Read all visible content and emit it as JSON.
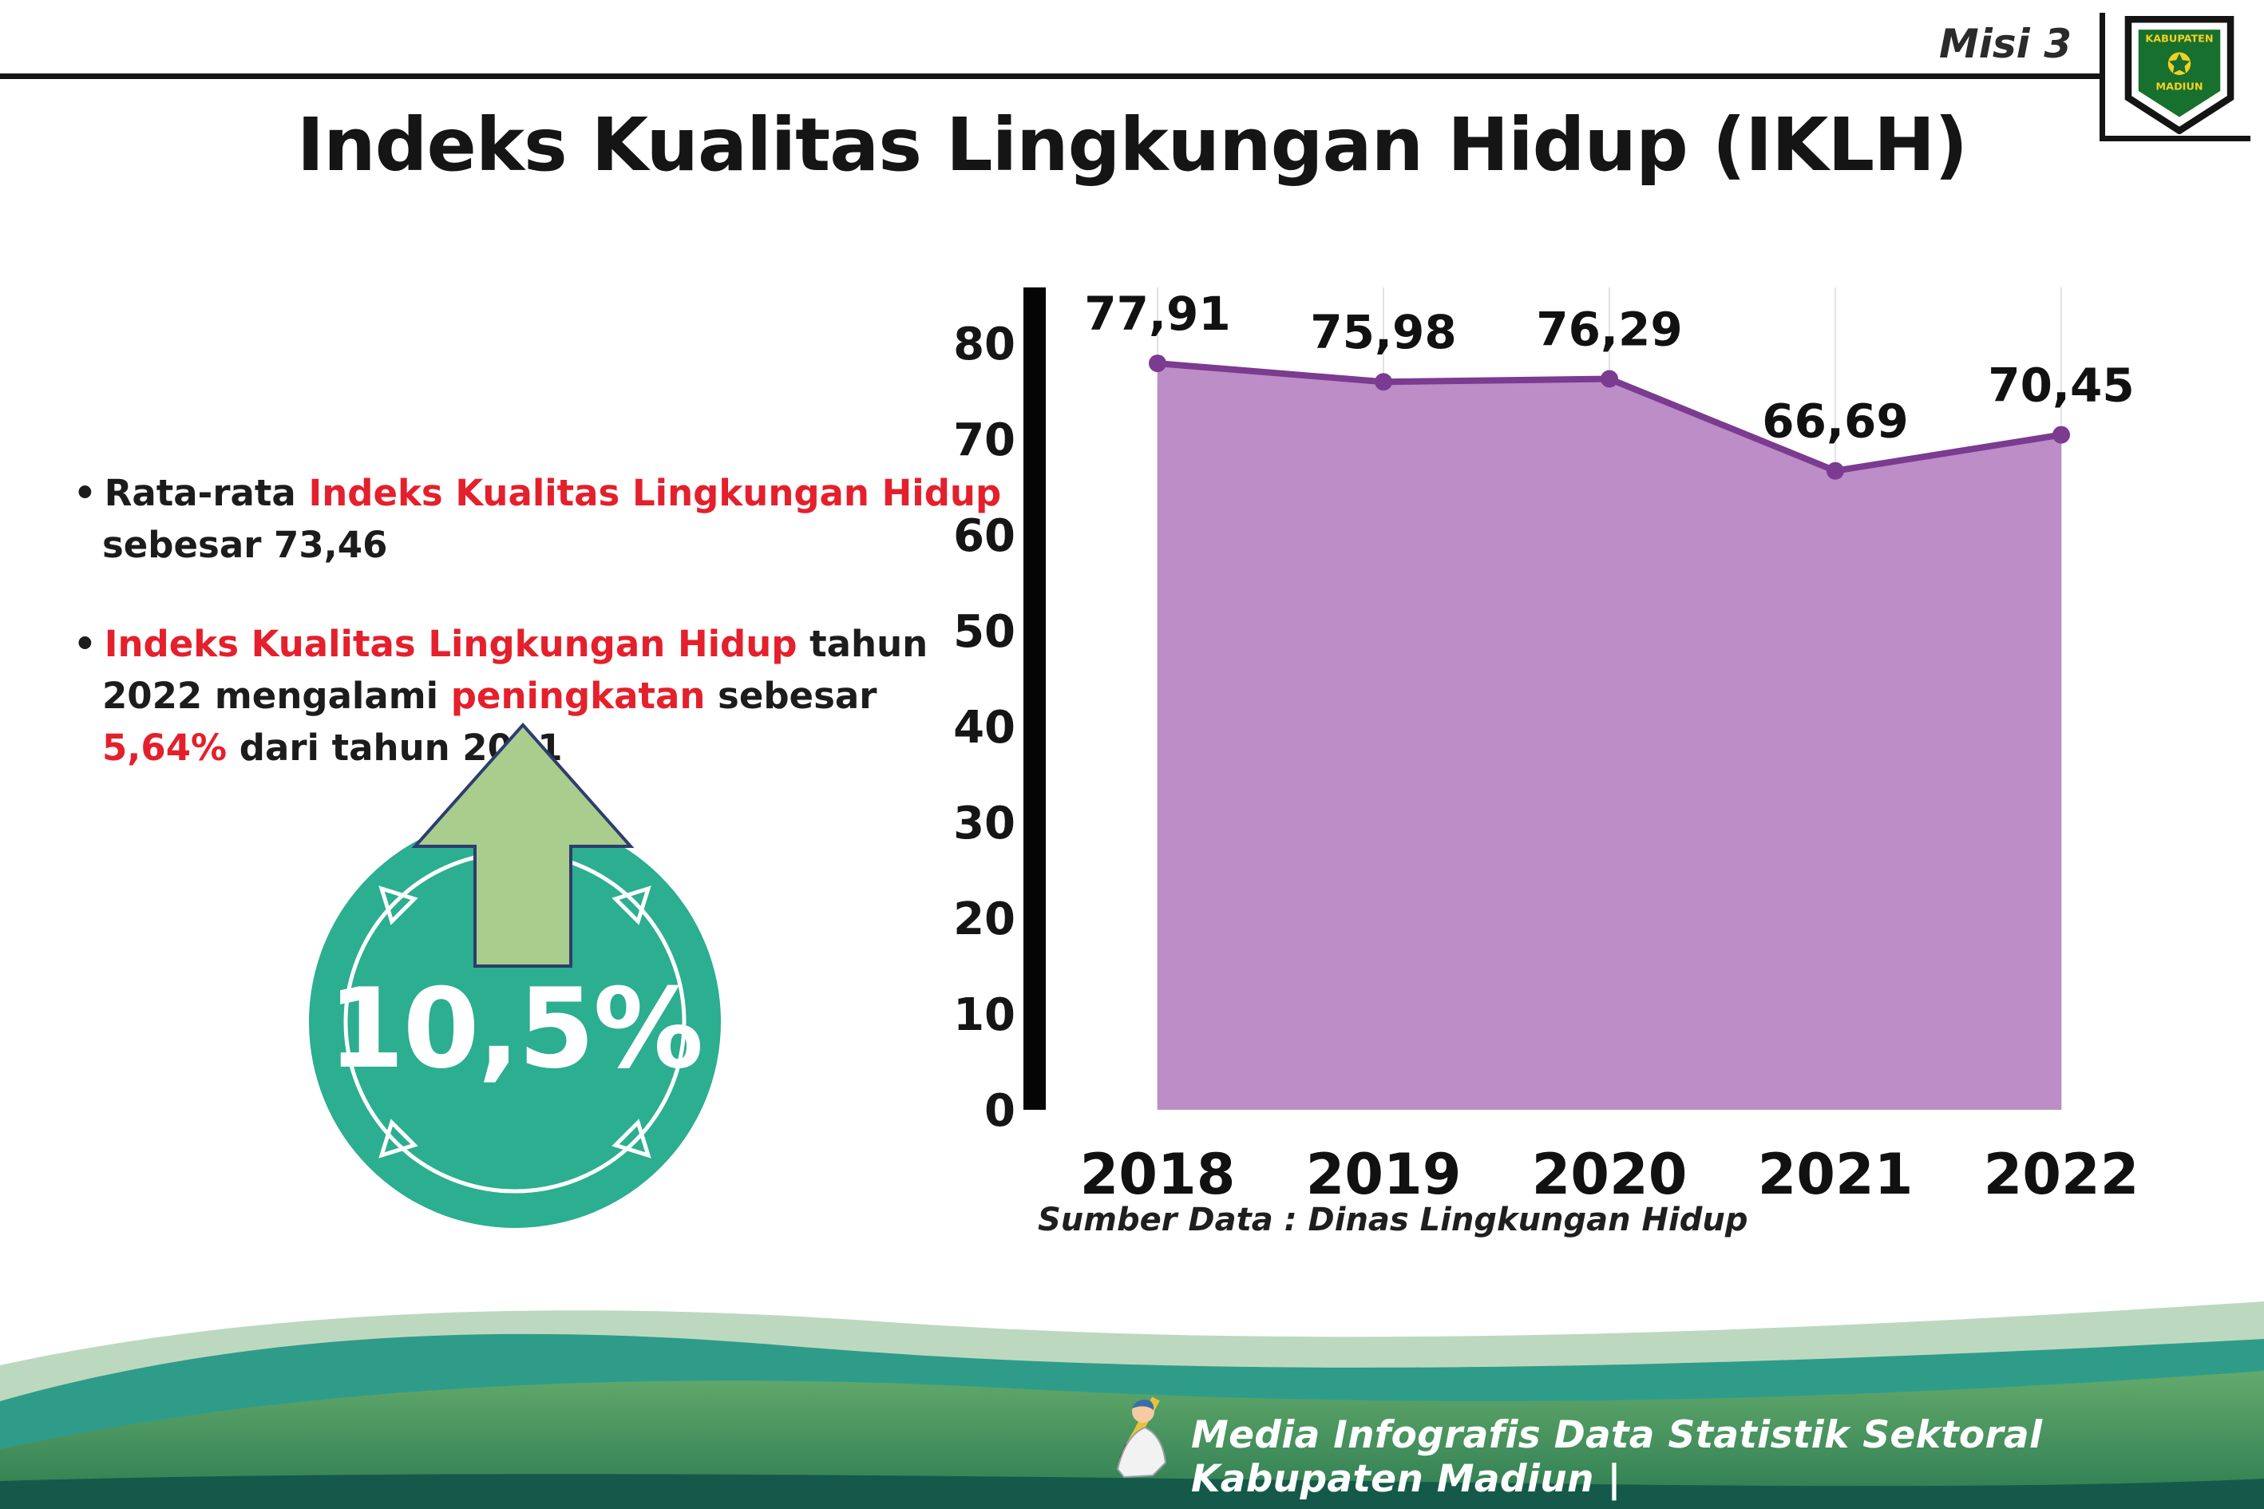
{
  "theme": {
    "red": "#e4202c",
    "ink": "#161616",
    "footer_text": "#ffffff"
  },
  "header": {
    "misi_label": "Misi 3",
    "title": "Indeks Kualitas Lingkungan Hidup (IKLH)",
    "logo": {
      "name": "Kabupaten Madiun",
      "line1": "KABUPATEN",
      "line2": "MADIUN"
    }
  },
  "bullets": [
    {
      "segments": [
        {
          "text": "Rata-rata "
        },
        {
          "text": "Indeks Kualitas Lingkungan Hidup"
        },
        {
          "text": " sebesar 73,46"
        }
      ]
    },
    {
      "segments": [
        {
          "text": "Indeks Kualitas Lingkungan Hidup"
        },
        {
          "text": " tahun 2022 mengalami "
        },
        {
          "text": "peningkatan"
        },
        {
          "text": " sebesar "
        },
        {
          "text": "5,64%"
        },
        {
          "text": " dari tahun 2021"
        }
      ]
    }
  ],
  "badge": {
    "value": "10,5%",
    "circle_color": "#2cae90",
    "arrow_color": "#a8cd8d"
  },
  "chart_data": {
    "type": "area",
    "title": "Indeks Kualitas Lingkungan Hidup (IKLH)",
    "categories": [
      "2018",
      "2019",
      "2020",
      "2021",
      "2022"
    ],
    "values": [
      77.91,
      75.98,
      76.29,
      66.69,
      70.45
    ],
    "labels": [
      "77,91",
      "75,98",
      "76,29",
      "66,69",
      "70,45"
    ],
    "xlabel": "",
    "ylabel": "",
    "ylim": [
      0,
      80
    ],
    "yticks": [
      0,
      10,
      20,
      30,
      40,
      50,
      60,
      70,
      80
    ],
    "grid": "vertical",
    "legend": "none",
    "fill_color": "#bc8dc6",
    "line_color": "#7a3b90",
    "source": "Sumber Data : Dinas Lingkungan Hidup"
  },
  "footer": {
    "credit": "Media Infografis Data Statistik Sektoral Kabupaten Madiun |"
  }
}
